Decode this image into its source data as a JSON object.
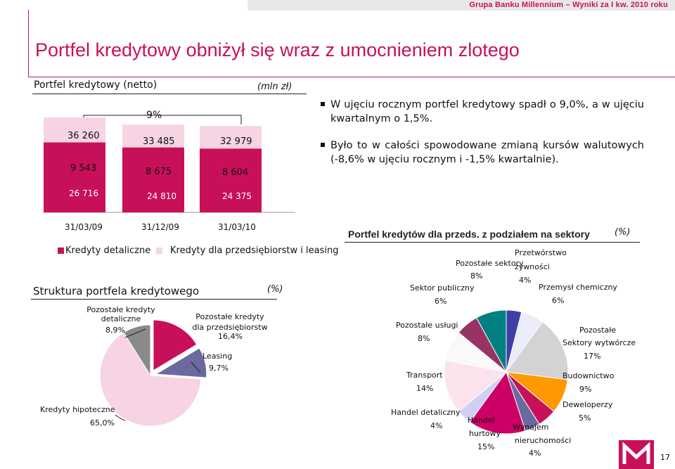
{
  "header": {
    "text": "Grupa Banku Millennium – Wyniki za I kw. 2010 roku"
  },
  "page": {
    "title": "Portfel kredytowy obniżył się wraz z umocnieniem zlotego",
    "number": "17"
  },
  "bar_section": {
    "heading": "Portfel kredytowy (netto)",
    "unit": "(mln zł)",
    "change_label": "-9%"
  },
  "bullets": [
    "W ujęciu rocznym portfel kredytowy spadł o 9,0%, a w ujęciu kwartalnym o 1,5%.",
    "Było to w całości spowodowane zmianą kursów walutowych (-8,6% w ujęciu rocznym i  -1,5% kwartalnie)."
  ],
  "legend": {
    "retail": "Kredyty detaliczne",
    "corporate": "Kredyty dla przedsiębiorstw i leasing"
  },
  "colors": {
    "retail": "#c8105a",
    "corporate": "#f6d4e3",
    "accent": "#c8105a"
  },
  "chart_data": [
    {
      "type": "bar",
      "stacked": true,
      "categories": [
        "31/03/09",
        "31/12/09",
        "31/03/10"
      ],
      "series": [
        {
          "name": "Kredyty detaliczne",
          "values": [
            26716,
            24810,
            24375
          ]
        },
        {
          "name": "Kredyty dla przedsiębiorstw i leasing",
          "values": [
            9543,
            8675,
            8604
          ]
        }
      ],
      "totals": [
        36260,
        33485,
        32979
      ],
      "value_labels": {
        "retail": [
          "26 716",
          "24 810",
          "24 375"
        ],
        "corporate": [
          "9 543",
          "8 675",
          "8 604"
        ],
        "totals": [
          "36 260",
          "33 485",
          "32 979"
        ]
      }
    },
    {
      "type": "pie",
      "title": "Struktura portfela kredytowego",
      "unit": "(%)",
      "slices": [
        {
          "label": "Kredyty hipoteczne",
          "value_label": "65,0%",
          "value": 65.0,
          "color": "#f6d4e3"
        },
        {
          "label": "Pozostałe kredyty detaliczne",
          "value_label": "8,9%",
          "value": 8.9,
          "color": "#8a8a8a"
        },
        {
          "label": "Pozostałe kredyty dla przedsiębiorstw",
          "value_label": "16,4%",
          "value": 16.4,
          "color": "#c8105a"
        },
        {
          "label": "Leasing",
          "value_label": "9,7%",
          "value": 9.7,
          "color": "#6a6a9e"
        }
      ]
    },
    {
      "type": "pie",
      "title": "Portfel kredytów dla przeds. z podziałem na sektory",
      "unit": "(%)",
      "slices": [
        {
          "label": "Przetwórstwo żywności",
          "value_label": "4%",
          "value": 4,
          "color": "#3f3fa8"
        },
        {
          "label": "Przemysł chemiczny",
          "value_label": "6%",
          "value": 6,
          "color": "#ececf8"
        },
        {
          "label": "Pozostałe Sektory wytwórcze",
          "value_label": "17%",
          "value": 17,
          "color": "#d3d3d3"
        },
        {
          "label": "Budownictwo",
          "value_label": "9%",
          "value": 9,
          "color": "#ff9900"
        },
        {
          "label": "Deweloperzy",
          "value_label": "5%",
          "value": 5,
          "color": "#c8105a"
        },
        {
          "label": "Wynajem nieruchomości",
          "value_label": "4%",
          "value": 4,
          "color": "#6a6a9e"
        },
        {
          "label": "Handel hurtowy",
          "value_label": "15%",
          "value": 15,
          "color": "#cc0066"
        },
        {
          "label": "Handel detaliczny",
          "value_label": "4%",
          "value": 4,
          "color": "#d0d0f5"
        },
        {
          "label": "Transport",
          "value_label": "14%",
          "value": 14,
          "color": "#fbe3ee"
        },
        {
          "label": "Pozostałe usługi",
          "value_label": "8%",
          "value": 8,
          "color": "#f9f9f9"
        },
        {
          "label": "Sektor publiczny",
          "value_label": "6%",
          "value": 6,
          "color": "#993366"
        },
        {
          "label": "Pozostałe sektory",
          "value_label": "8%",
          "value": 8,
          "color": "#008080"
        }
      ]
    }
  ]
}
